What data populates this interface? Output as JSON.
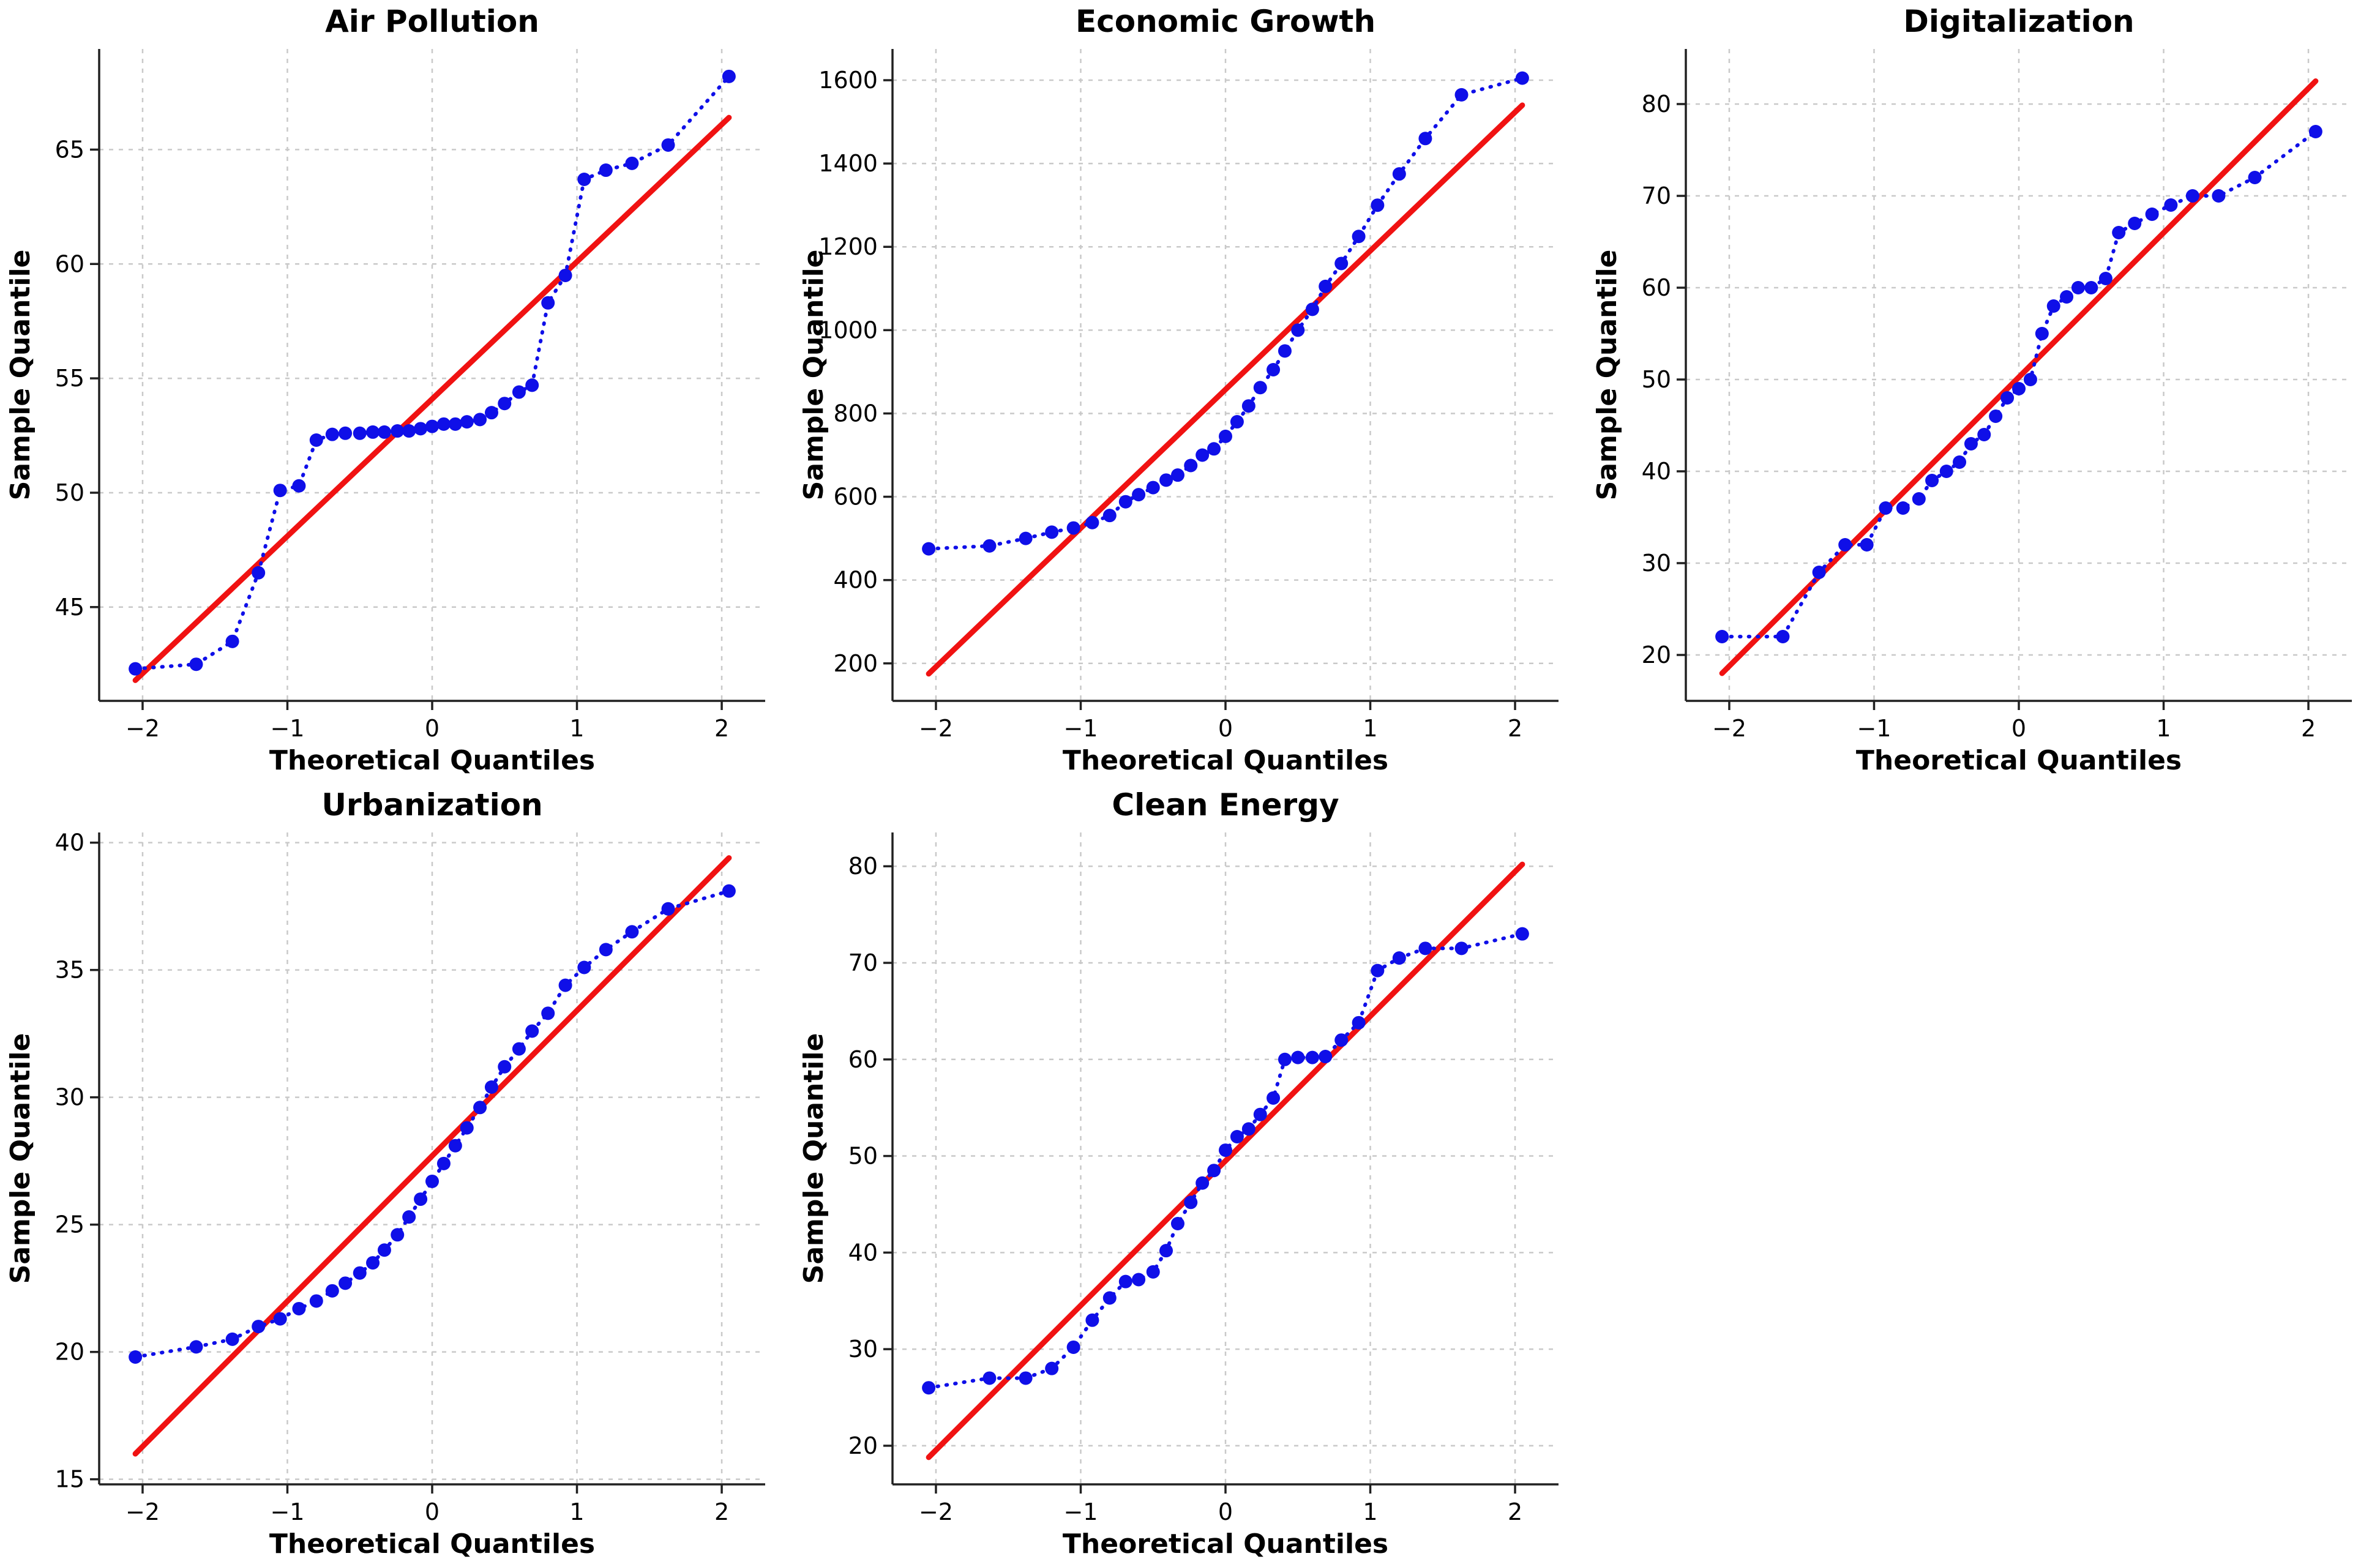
{
  "figure": {
    "rows": 2,
    "cols": 3,
    "background": "#ffffff"
  },
  "colors": {
    "sample_points": "#0f0fe8",
    "sample_dotted_line": "#0f0fe8",
    "reference_line": "#f01212",
    "grid": "#c9c9c9",
    "spine": "#212121",
    "tick_text": "#000000",
    "title_text": "#000000"
  },
  "chart_data": {
    "type": "scatter",
    "subtype": "qq-plot-grid",
    "shared": {
      "xlabel": "Theoretical Quantiles",
      "ylabel": "Sample Quantile",
      "xticks": [
        -2,
        -1,
        0,
        1,
        2
      ],
      "xlim": [
        -2.3,
        2.3
      ],
      "grid": true,
      "legend": false,
      "theoretical_quantiles": [
        -2.05,
        -1.63,
        -1.38,
        -1.2,
        -1.05,
        -0.92,
        -0.8,
        -0.69,
        -0.6,
        -0.5,
        -0.41,
        -0.33,
        -0.24,
        -0.16,
        -0.08,
        0,
        0.08,
        0.16,
        0.24,
        0.33,
        0.41,
        0.5,
        0.6,
        0.69,
        0.8,
        0.92,
        1.05,
        1.2,
        1.38,
        1.63,
        2.05
      ]
    },
    "plots": [
      {
        "title": "Air Pollution",
        "ylim": [
          40.9,
          69.4
        ],
        "yticks": [
          45,
          50,
          55,
          60,
          65
        ],
        "ref_line": {
          "x": [
            -2.05,
            2.05
          ],
          "y": [
            41.8,
            66.4
          ]
        },
        "sample_quantiles": [
          42.3,
          42.5,
          43.5,
          46.5,
          50.1,
          50.3,
          52.3,
          52.55,
          52.6,
          52.6,
          52.65,
          52.65,
          52.7,
          52.7,
          52.8,
          52.9,
          53.0,
          53.0,
          53.1,
          53.2,
          53.5,
          53.9,
          54.4,
          54.7,
          58.3,
          59.5,
          63.7,
          64.1,
          64.4,
          65.2,
          68.2
        ]
      },
      {
        "title": "Economic Growth",
        "ylim": [
          110,
          1675
        ],
        "yticks": [
          200,
          400,
          600,
          800,
          1000,
          1200,
          1400,
          1600
        ],
        "ref_line": {
          "x": [
            -2.05,
            2.05
          ],
          "y": [
            175,
            1540
          ]
        },
        "sample_quantiles": [
          475,
          482,
          500,
          515,
          525,
          538,
          555,
          588,
          605,
          622,
          640,
          652,
          675,
          700,
          715,
          745,
          780,
          818,
          862,
          905,
          950,
          1000,
          1050,
          1105,
          1160,
          1225,
          1300,
          1375,
          1460,
          1565,
          1605
        ]
      },
      {
        "title": "Digitalization",
        "ylim": [
          15,
          86
        ],
        "yticks": [
          20,
          30,
          40,
          50,
          60,
          70,
          80
        ],
        "ref_line": {
          "x": [
            -2.05,
            2.05
          ],
          "y": [
            18,
            82.5
          ]
        },
        "sample_quantiles": [
          22,
          22,
          29,
          32,
          32,
          36,
          36,
          37,
          39,
          40,
          41,
          43,
          44,
          46,
          48,
          49,
          50,
          55,
          58,
          59,
          60,
          60,
          61,
          66,
          67,
          68,
          69,
          70,
          70,
          72,
          77
        ]
      },
      {
        "title": "Urbanization",
        "ylim": [
          14.8,
          40.4
        ],
        "yticks": [
          15,
          20,
          25,
          30,
          35,
          40
        ],
        "ref_line": {
          "x": [
            -2.05,
            2.05
          ],
          "y": [
            16,
            39.4
          ]
        },
        "sample_quantiles": [
          19.8,
          20.2,
          20.5,
          21.0,
          21.3,
          21.7,
          22.0,
          22.4,
          22.7,
          23.1,
          23.5,
          24.0,
          24.6,
          25.3,
          26.0,
          26.7,
          27.4,
          28.1,
          28.8,
          29.6,
          30.4,
          31.2,
          31.9,
          32.6,
          33.3,
          34.4,
          35.1,
          35.8,
          36.5,
          37.4,
          38.1
        ]
      },
      {
        "title": "Clean Energy",
        "ylim": [
          16,
          83.5
        ],
        "yticks": [
          20,
          30,
          40,
          50,
          60,
          70,
          80
        ],
        "ref_line": {
          "x": [
            -2.05,
            2.05
          ],
          "y": [
            18.8,
            80.2
          ]
        },
        "sample_quantiles": [
          26,
          27,
          27,
          28,
          30.2,
          33,
          35.3,
          37,
          37.2,
          38,
          40.2,
          43,
          45.2,
          47.2,
          48.5,
          50.6,
          52,
          52.8,
          54.3,
          56,
          60,
          60.2,
          60.2,
          60.3,
          62,
          63.8,
          69.2,
          70.5,
          71.5,
          71.5,
          73
        ]
      }
    ]
  }
}
